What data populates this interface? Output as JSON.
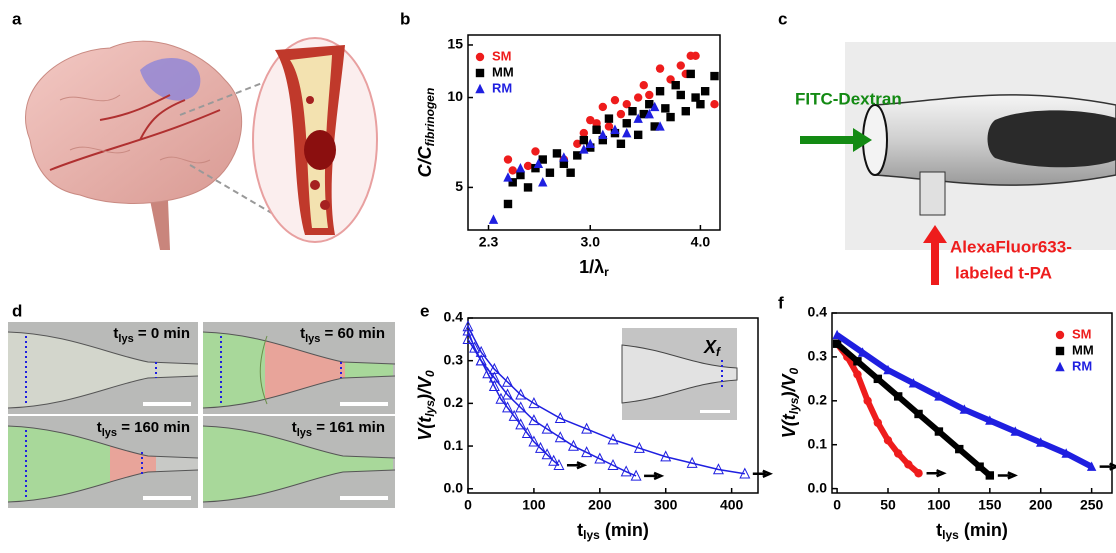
{
  "panel_labels": [
    "a",
    "b",
    "c",
    "d",
    "e",
    "f"
  ],
  "illustration_c": {
    "inlet": "FITC-Dextran",
    "outlet": [
      "AlexaFluor633-",
      "labeled t-PA"
    ]
  },
  "micrographs": [
    {
      "label": [
        "t",
        "lys",
        " = 0 min"
      ]
    },
    {
      "label": [
        "t",
        "lys",
        " = 60 min"
      ]
    },
    {
      "label": [
        "t",
        "lys",
        " = 160 min"
      ]
    },
    {
      "label": [
        "t",
        "lys",
        " = 161 min"
      ]
    }
  ],
  "inset_label": [
    "X",
    "f"
  ],
  "chart_data": [
    {
      "type": "scatter",
      "xlabel": [
        "1/λ",
        "r"
      ],
      "ylabel": [
        "C/C",
        "fibrinogen"
      ],
      "xscale": "log",
      "yscale": "log",
      "xlim": [
        2.18,
        4.21
      ],
      "ylim": [
        3.6,
        16.2
      ],
      "xticks": [
        2.3,
        {
          "value": 3,
          "label": "3.0"
        },
        {
          "value": 4,
          "label": "4.0"
        }
      ],
      "yticks": [
        5,
        10,
        15
      ],
      "legend": "upper left",
      "series": [
        {
          "name": "SM",
          "color": "#ee1c1c",
          "marker": "circle",
          "x": [
            2.42,
            2.45,
            2.55,
            2.6,
            2.8,
            2.9,
            2.95,
            3.0,
            3.05,
            3.1,
            3.15,
            3.2,
            3.25,
            3.3,
            3.4,
            3.45,
            3.5,
            3.6,
            3.7,
            3.8,
            3.85,
            3.9,
            3.95,
            4.15
          ],
          "values": [
            6.2,
            5.7,
            5.9,
            6.6,
            6.2,
            7.0,
            7.6,
            8.4,
            8.2,
            9.3,
            8.0,
            9.8,
            8.8,
            9.5,
            10.0,
            11.0,
            10.2,
            12.5,
            11.5,
            12.8,
            12.0,
            13.8,
            13.8,
            9.5
          ]
        },
        {
          "name": "MM",
          "color": "#000000",
          "marker": "square",
          "x": [
            2.42,
            2.45,
            2.5,
            2.55,
            2.6,
            2.65,
            2.7,
            2.75,
            2.8,
            2.85,
            2.9,
            2.95,
            3.0,
            3.05,
            3.1,
            3.15,
            3.2,
            3.25,
            3.3,
            3.35,
            3.4,
            3.45,
            3.5,
            3.55,
            3.6,
            3.65,
            3.7,
            3.75,
            3.8,
            3.85,
            3.9,
            3.95,
            4.0,
            4.05,
            4.15
          ],
          "values": [
            4.4,
            5.2,
            5.5,
            5.0,
            5.8,
            6.2,
            5.6,
            6.5,
            6.0,
            5.6,
            6.4,
            7.2,
            6.8,
            7.8,
            7.2,
            8.5,
            7.6,
            7.0,
            8.2,
            9.0,
            7.5,
            8.8,
            9.5,
            8.0,
            10.5,
            9.2,
            8.6,
            11.0,
            10.2,
            9.0,
            12.0,
            10.0,
            9.5,
            10.5,
            11.8
          ]
        },
        {
          "name": "RM",
          "color": "#1f1fe0",
          "marker": "triangle",
          "x": [
            2.33,
            2.42,
            2.5,
            2.62,
            2.65,
            2.8,
            2.95,
            3.0,
            3.1,
            3.2,
            3.3,
            3.4,
            3.5,
            3.55,
            3.6
          ],
          "values": [
            3.9,
            5.4,
            5.8,
            6.0,
            5.2,
            6.3,
            6.7,
            7.0,
            7.5,
            7.8,
            7.6,
            8.5,
            8.8,
            9.3,
            8.0
          ]
        }
      ]
    },
    {
      "type": "line",
      "xlabel": [
        "t",
        "lys",
        " (min)"
      ],
      "ylabel": [
        "V(t",
        "lys",
        ")/V",
        "0"
      ],
      "xlim": [
        0,
        440
      ],
      "ylim": [
        -0.01,
        0.4
      ],
      "xticks": [
        0,
        100,
        200,
        300,
        400
      ],
      "yticks": [
        {
          "value": 0,
          "label": "0.0"
        },
        0.1,
        0.2,
        0.3,
        0.4
      ],
      "series": [
        {
          "color": "#1f1fe0",
          "marker": "open-triangle",
          "x": [
            0,
            10,
            20,
            30,
            40,
            50,
            60,
            70,
            80,
            90,
            100,
            110,
            120,
            130,
            138
          ],
          "values": [
            0.37,
            0.33,
            0.3,
            0.27,
            0.24,
            0.21,
            0.19,
            0.17,
            0.15,
            0.13,
            0.11,
            0.095,
            0.08,
            0.065,
            0.055
          ]
        },
        {
          "color": "#1f1fe0",
          "marker": "open-triangle",
          "x": [
            0,
            20,
            40,
            60,
            80,
            100,
            120,
            140,
            160,
            180,
            200,
            220,
            240,
            255
          ],
          "values": [
            0.35,
            0.3,
            0.26,
            0.22,
            0.19,
            0.16,
            0.14,
            0.12,
            0.1,
            0.085,
            0.07,
            0.055,
            0.04,
            0.03
          ]
        },
        {
          "color": "#1f1fe0",
          "marker": "open-triangle",
          "x": [
            0,
            20,
            40,
            60,
            80,
            100,
            140,
            180,
            220,
            260,
            300,
            340,
            380,
            420
          ],
          "values": [
            0.38,
            0.32,
            0.28,
            0.25,
            0.22,
            0.2,
            0.165,
            0.14,
            0.115,
            0.095,
            0.075,
            0.06,
            0.045,
            0.035
          ]
        }
      ]
    },
    {
      "type": "line",
      "xlabel": [
        "t",
        "lys",
        " (min)"
      ],
      "ylabel": [
        "V(t",
        "lys",
        ")/V",
        "0"
      ],
      "xlim": [
        -5,
        270
      ],
      "ylim": [
        -0.01,
        0.4
      ],
      "xticks": [
        0,
        50,
        100,
        150,
        200,
        250
      ],
      "yticks": [
        {
          "value": 0,
          "label": "0.0"
        },
        0.1,
        0.2,
        0.3,
        0.4
      ],
      "legend": "upper right",
      "series": [
        {
          "name": "SM",
          "color": "#ee1c1c",
          "marker": "circle",
          "x": [
            0,
            10,
            20,
            30,
            40,
            50,
            60,
            70,
            80
          ],
          "values": [
            0.33,
            0.3,
            0.26,
            0.2,
            0.15,
            0.11,
            0.08,
            0.055,
            0.035
          ]
        },
        {
          "name": "MM",
          "color": "#000000",
          "marker": "square",
          "x": [
            0,
            20,
            40,
            60,
            80,
            100,
            120,
            140,
            150
          ],
          "values": [
            0.33,
            0.29,
            0.25,
            0.21,
            0.17,
            0.13,
            0.09,
            0.05,
            0.03
          ]
        },
        {
          "name": "RM",
          "color": "#1f1fe0",
          "marker": "triangle",
          "x": [
            0,
            25,
            50,
            75,
            100,
            125,
            150,
            175,
            200,
            225,
            250
          ],
          "values": [
            0.35,
            0.31,
            0.27,
            0.24,
            0.21,
            0.18,
            0.155,
            0.13,
            0.105,
            0.08,
            0.05
          ]
        }
      ]
    }
  ]
}
